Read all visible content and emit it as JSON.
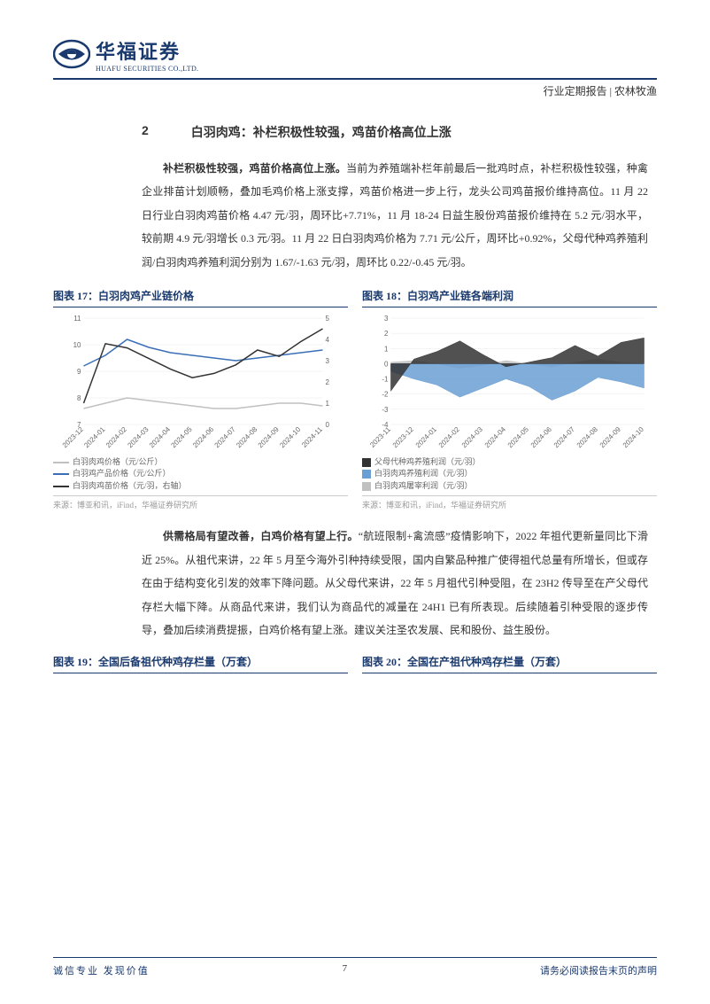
{
  "brand": {
    "cn": "华福证券",
    "en": "HUAFU SECURITIES CO.,LTD.",
    "color": "#1a3a6e"
  },
  "header_right": "行业定期报告 | 农林牧渔",
  "section": {
    "num": "2",
    "title": "白羽肉鸡：补栏积极性较强，鸡苗价格高位上涨"
  },
  "para1_lead": "补栏积极性较强，鸡苗价格高位上涨。",
  "para1_body": "当前为养殖端补栏年前最后一批鸡时点，补栏积极性较强，种禽企业排苗计划顺畅，叠加毛鸡价格上涨支撑，鸡苗价格进一步上行，龙头公司鸡苗报价维持高位。11 月 22 日行业白羽肉鸡苗价格 4.47 元/羽，周环比+7.71%，11 月 18-24 日益生股份鸡苗报价维持在 5.2 元/羽水平，较前期 4.9 元/羽增长 0.3 元/羽。11 月 22 日白羽肉鸡价格为 7.71 元/公斤，周环比+0.92%，父母代种鸡养殖利润/白羽肉鸡养殖利润分别为 1.67/-1.63 元/羽，周环比 0.22/-0.45 元/羽。",
  "chart17": {
    "title": "图表 17：白羽肉鸡产业链价格",
    "type": "line",
    "x_labels": [
      "2023-12",
      "2024-01",
      "2024-02",
      "2024-03",
      "2024-04",
      "2024-05",
      "2024-06",
      "2024-07",
      "2024-08",
      "2024-09",
      "2024-10",
      "2024-11"
    ],
    "left_ylim": [
      7,
      11
    ],
    "left_yticks": [
      7,
      8,
      9,
      10,
      11
    ],
    "right_ylim": [
      0,
      5
    ],
    "right_yticks": [
      0,
      1,
      2,
      3,
      4,
      5
    ],
    "series": [
      {
        "name": "白羽肉鸡价格（元/公斤）",
        "color": "#c0c0c0",
        "axis": "left",
        "values": [
          7.6,
          7.8,
          8.0,
          7.9,
          7.8,
          7.7,
          7.6,
          7.6,
          7.7,
          7.8,
          7.8,
          7.7
        ]
      },
      {
        "name": "白羽鸡产品价格（元/公斤）",
        "color": "#3a6fb7",
        "axis": "left",
        "values": [
          9.2,
          9.6,
          10.2,
          9.9,
          9.7,
          9.6,
          9.5,
          9.4,
          9.5,
          9.6,
          9.7,
          9.8
        ]
      },
      {
        "name": "白羽肉鸡苗价格（元/羽，右轴）",
        "color": "#333333",
        "axis": "right",
        "values": [
          1.0,
          3.8,
          3.6,
          3.1,
          2.6,
          2.2,
          2.4,
          2.8,
          3.5,
          3.2,
          3.9,
          4.5
        ]
      }
    ],
    "source": "来源：博亚和讯，iFind，华福证券研究所",
    "background": "#ffffff",
    "grid_color": "#e8e8e8",
    "tick_fontsize": 8
  },
  "chart18": {
    "title": "图表 18：白羽鸡产业链各端利润",
    "type": "area",
    "x_labels": [
      "2023-11",
      "2023-12",
      "2024-01",
      "2024-02",
      "2024-03",
      "2024-04",
      "2024-05",
      "2024-06",
      "2024-07",
      "2024-08",
      "2024-09",
      "2024-10"
    ],
    "ylim": [
      -4,
      3
    ],
    "yticks": [
      -4,
      -3,
      -2,
      -1,
      0,
      1,
      2,
      3
    ],
    "series": [
      {
        "name": "父母代种鸡养殖利润（元/羽）",
        "color": "#333333",
        "values": [
          -1.8,
          0.3,
          0.8,
          1.5,
          0.6,
          -0.2,
          0.1,
          0.4,
          1.2,
          0.5,
          1.4,
          1.7
        ]
      },
      {
        "name": "白羽肉鸡养殖利润（元/羽）",
        "color": "#6a9fd4",
        "values": [
          -0.5,
          -1.0,
          -1.4,
          -2.2,
          -1.6,
          -1.0,
          -1.5,
          -2.4,
          -1.8,
          -0.9,
          -1.2,
          -1.6
        ]
      },
      {
        "name": "白羽肉鸡屠宰利润（元/羽）",
        "color": "#c0c0c0",
        "values": [
          0.1,
          0.2,
          0.0,
          -0.3,
          -0.1,
          0.2,
          0.0,
          -0.2,
          0.1,
          0.3,
          0.1,
          0.0
        ]
      }
    ],
    "source": "来源：博亚和讯，iFind，华福证券研究所",
    "background": "#ffffff",
    "grid_color": "#e8e8e8",
    "tick_fontsize": 8
  },
  "para2_lead": "供需格局有望改善，白鸡价格有望上行。",
  "para2_body": "“航班限制+禽流感”疫情影响下，2022 年祖代更新量同比下滑近 25%。从祖代来讲，22 年 5 月至今海外引种持续受限，国内自繁品种推广使得祖代总量有所增长，但或存在由于结构变化引发的效率下降问题。从父母代来讲，22 年 5 月祖代引种受阻，在 23H2 传导至在产父母代存栏大幅下降。从商品代来讲，我们认为商品代的减量在 24H1 已有所表现。后续随着引种受限的逐步传导，叠加后续消费提振，白鸡价格有望上涨。建议关注圣农发展、民和股份、益生股份。",
  "chart19": {
    "title": "图表 19：全国后备祖代种鸡存栏量（万套）"
  },
  "chart20": {
    "title": "图表 20：全国在产祖代种鸡存栏量（万套）"
  },
  "footer": {
    "left": "诚信专业  发现价值",
    "page": "7",
    "right": "请务必阅读报告末页的声明"
  }
}
